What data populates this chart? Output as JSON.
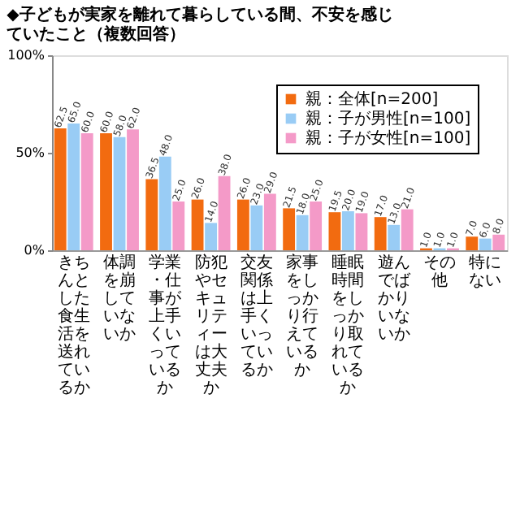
{
  "chart_data": {
    "type": "bar",
    "title": "◆子どもが実家を離れて暮らしている間、不安を感じていたこと（複数回答）",
    "categories": [
      "きちんとした食生活を送れているか",
      "体調を崩していないか",
      "学業・仕事が上手くいっているか",
      "防犯やセキュリティーは大丈夫か",
      "交友関係は上手くいっているか",
      "家事をしっかり行えているか",
      "睡眠時間をしっかり取れているか",
      "遊んでばかりいないか",
      "その他",
      "特にない"
    ],
    "series": [
      {
        "name": "親：全体[n=200]",
        "color": "#f26b10",
        "values": [
          62.5,
          60.0,
          36.5,
          26.0,
          26.0,
          21.5,
          19.5,
          17.0,
          1.0,
          7.0
        ],
        "value_labels": [
          "62.5",
          "60.0",
          "36.5",
          "26.0",
          "26.0",
          "21.5",
          "19.5",
          "17.0",
          "1.0",
          "7.0"
        ]
      },
      {
        "name": "親：子が男性[n=100]",
        "color": "#99ccf5",
        "values": [
          65.0,
          58.0,
          48.0,
          14.0,
          23.0,
          18.0,
          20.0,
          13.0,
          1.0,
          6.0
        ],
        "value_labels": [
          "65.0",
          "58.0",
          "48.0",
          "14.0",
          "23.0",
          "18.0",
          "20.0",
          "13.0",
          "1.0",
          "6.0"
        ]
      },
      {
        "name": "親：子が女性[n=100]",
        "color": "#f49ac8",
        "values": [
          60.0,
          62.0,
          25.0,
          38.0,
          29.0,
          25.0,
          19.0,
          21.0,
          1.0,
          8.0
        ],
        "value_labels": [
          "60.0",
          "62.0",
          "25.0",
          "38.0",
          "29.0",
          "25.0",
          "19.0",
          "21.0",
          "1.0",
          "8.0"
        ]
      }
    ],
    "ylim": [
      0,
      100
    ],
    "yticks": [
      {
        "value": 0,
        "label": "0%"
      },
      {
        "value": 50,
        "label": "50%"
      },
      {
        "value": 100,
        "label": "100%"
      }
    ],
    "legend": "top right",
    "grid": false
  }
}
